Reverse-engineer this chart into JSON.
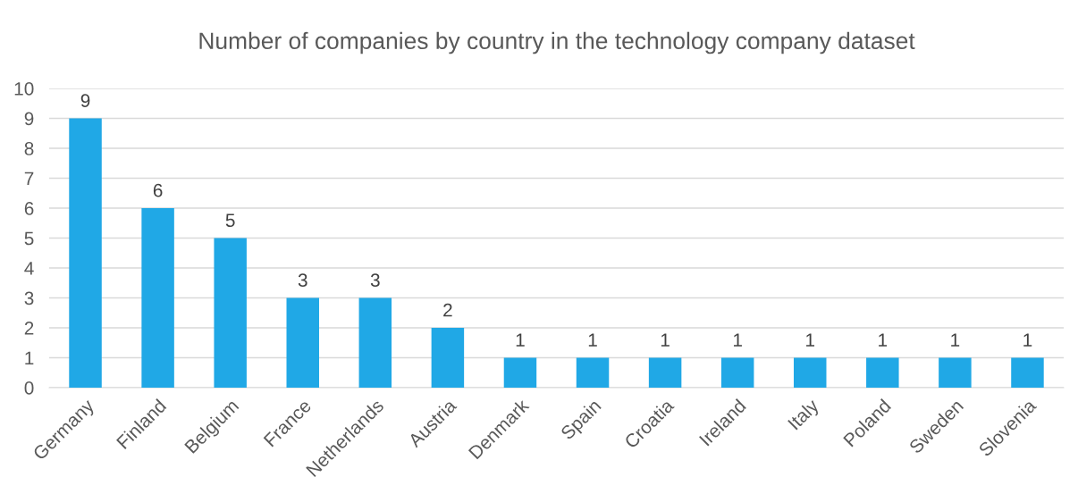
{
  "chart_data": {
    "type": "bar",
    "title": "Number of companies by country in the technology company dataset",
    "categories": [
      "Germany",
      "Finland",
      "Belgium",
      "France",
      "Netherlands",
      "Austria",
      "Denmark",
      "Spain",
      "Croatia",
      "Ireland",
      "Italy",
      "Poland",
      "Sweden",
      "Slovenia"
    ],
    "values": [
      9,
      6,
      5,
      3,
      3,
      2,
      1,
      1,
      1,
      1,
      1,
      1,
      1,
      1
    ],
    "color": "#20a8e6",
    "ylim": [
      0,
      10
    ],
    "yticks": [
      0,
      1,
      2,
      3,
      4,
      5,
      6,
      7,
      8,
      9,
      10
    ],
    "grid": "y",
    "data_labels": true
  }
}
